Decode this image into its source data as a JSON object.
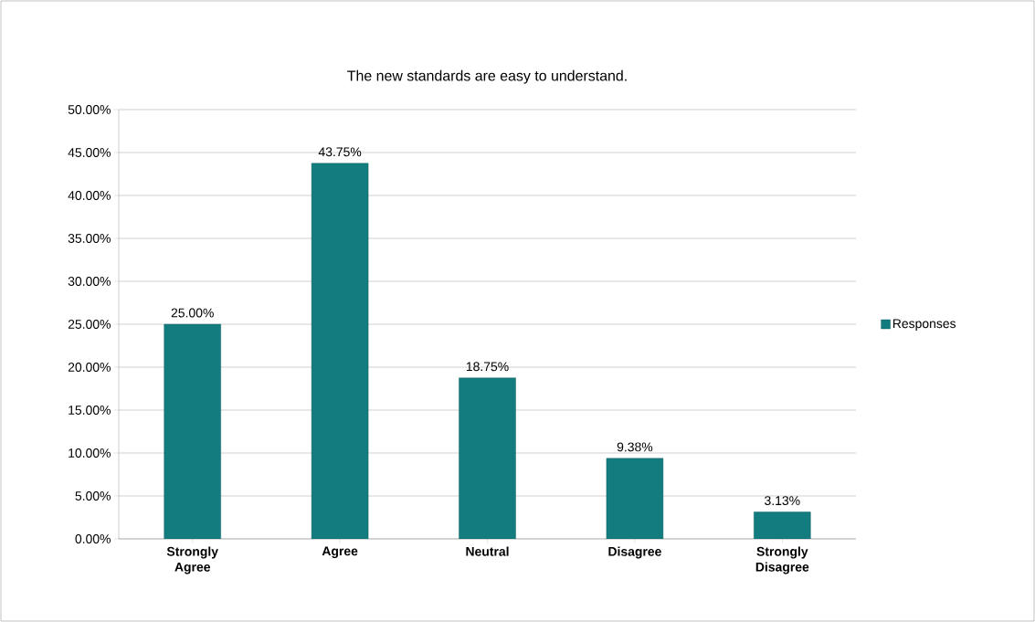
{
  "chart_data": {
    "type": "bar",
    "title": "The new standards are easy to understand.",
    "categories": [
      "Strongly Agree",
      "Agree",
      "Neutral",
      "Disagree",
      "Strongly Disagree"
    ],
    "series": [
      {
        "name": "Responses",
        "color": "#137c7e",
        "values": [
          25,
          43.75,
          18.75,
          9.38,
          3.13
        ],
        "value_labels": [
          "25.00%",
          "43.75%",
          "18.75%",
          "9.38%",
          "3.13%"
        ]
      }
    ],
    "ylim": [
      0,
      50
    ],
    "yticks": [
      {
        "value": 0,
        "label": "0.00%"
      },
      {
        "value": 5,
        "label": "5.00%"
      },
      {
        "value": 10,
        "label": "10.00%"
      },
      {
        "value": 15,
        "label": "15.00%"
      },
      {
        "value": 20,
        "label": "20.00%"
      },
      {
        "value": 25,
        "label": "25.00%"
      },
      {
        "value": 30,
        "label": "30.00%"
      },
      {
        "value": 35,
        "label": "35.00%"
      },
      {
        "value": 40,
        "label": "40.00%"
      },
      {
        "value": 45,
        "label": "45.00%"
      },
      {
        "value": 50,
        "label": "50.00%"
      }
    ],
    "grid": "y",
    "legend": "right"
  }
}
